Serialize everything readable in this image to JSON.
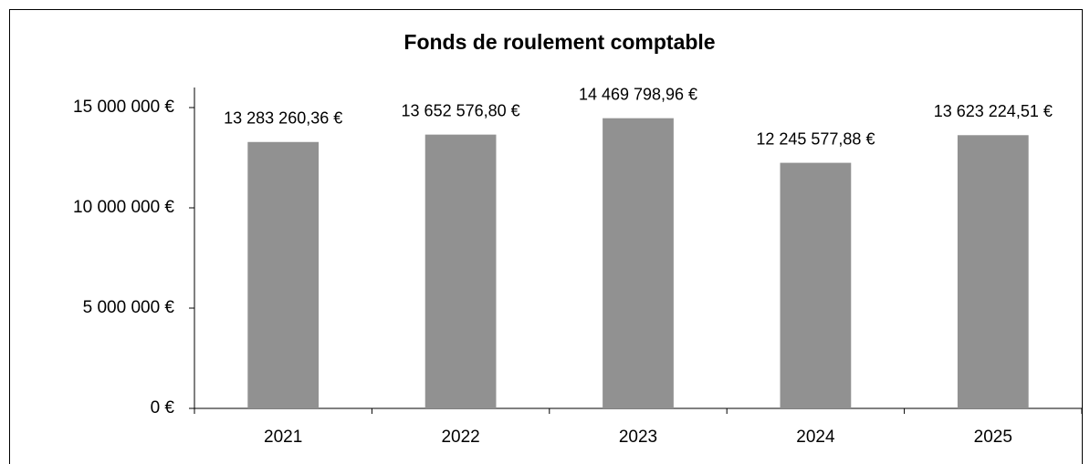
{
  "chart_data": {
    "type": "bar",
    "title": "Fonds de roulement comptable",
    "categories": [
      "2021",
      "2022",
      "2023",
      "2024",
      "2025"
    ],
    "values": [
      13283260.36,
      13652576.8,
      14469798.96,
      12245577.88,
      13623224.51
    ],
    "value_labels": [
      "13 283 260,36 €",
      "13 652 576,80 €",
      "14 469 798,96 €",
      "12 245 577,88 €",
      "13 623 224,51 €"
    ],
    "color": "#919191",
    "ylim": [
      0,
      16000000
    ],
    "yticks": [
      {
        "value": 0,
        "label": "0 €"
      },
      {
        "value": 5000000,
        "label": "5 000 000 €"
      },
      {
        "value": 10000000,
        "label": "10 000 000 €"
      },
      {
        "value": 15000000,
        "label": "15 000 000 €"
      }
    ],
    "grid": false
  }
}
